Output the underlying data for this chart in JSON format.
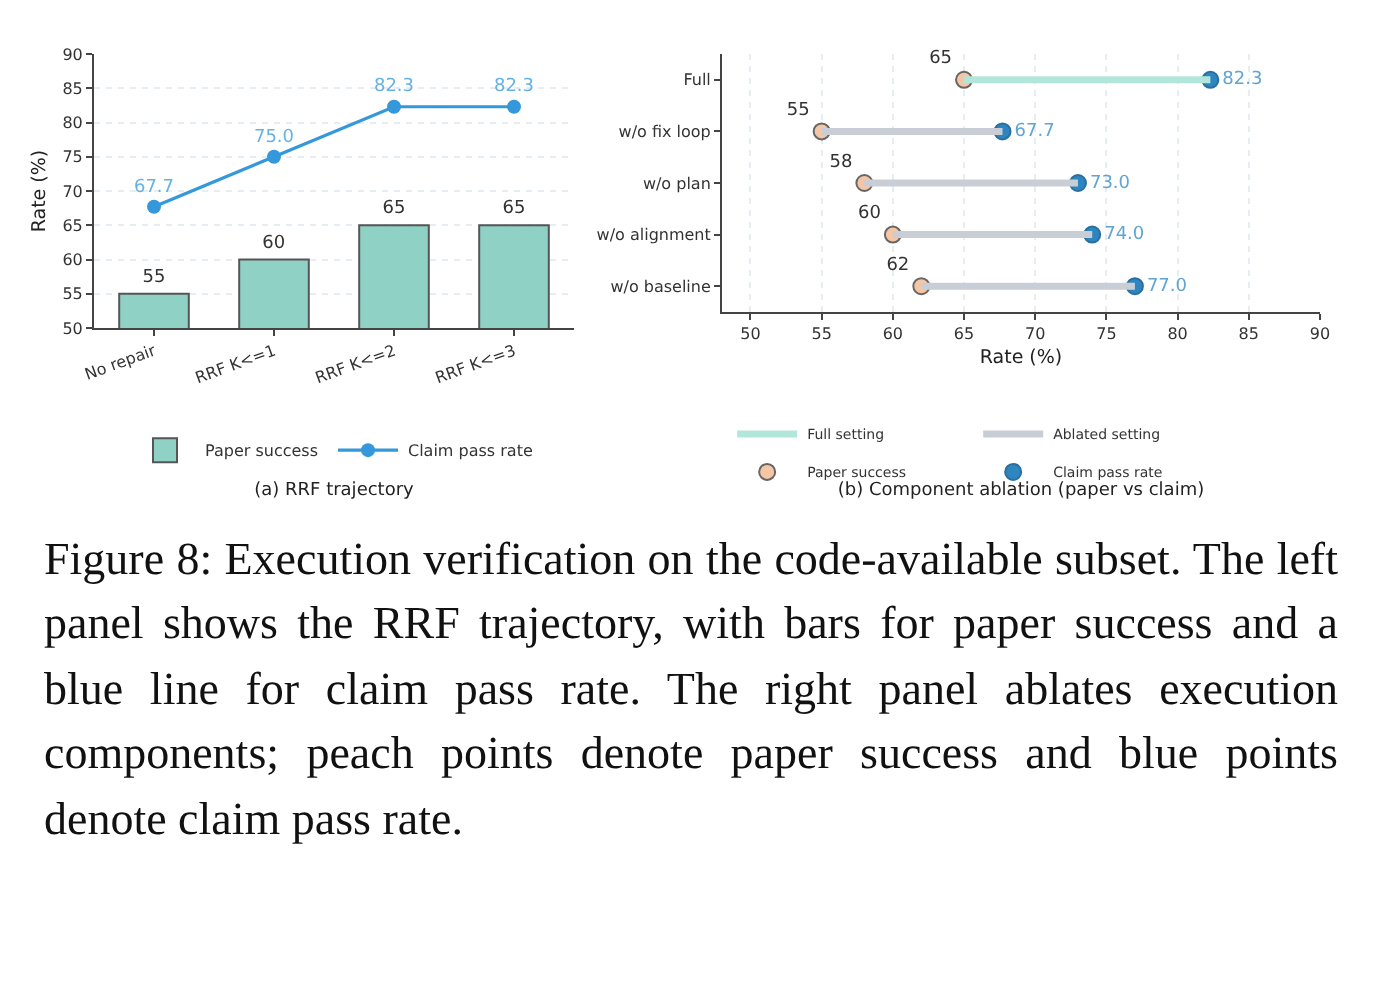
{
  "chart_data": [
    {
      "type": "bar",
      "title": "(a) RRF trajectory",
      "ylabel": "Rate (%)",
      "categories": [
        "No repair",
        "RRF K<=1",
        "RRF K<=2",
        "RRF K<=3"
      ],
      "series": [
        {
          "name": "Paper success",
          "color": "#8fd1c5",
          "values": [
            55,
            60,
            65,
            65
          ],
          "value_labels": [
            "55",
            "60",
            "65",
            "65"
          ]
        },
        {
          "name": "Claim pass rate",
          "type": "line",
          "color": "#3498db",
          "values": [
            67.7,
            75.0,
            82.3,
            82.3
          ],
          "value_labels": [
            "67.7",
            "75.0",
            "82.3",
            "82.3"
          ]
        }
      ],
      "ylim": [
        50,
        90
      ],
      "yticks": [
        50,
        55,
        60,
        65,
        70,
        75,
        80,
        85,
        90
      ],
      "grid": "y",
      "legend": "bottom",
      "marker": "circle",
      "line_style": "solid",
      "annotations": [
        "Figure 8: Execution verification on the code-available subset. The left panel shows the RRF trajectory, with bars for paper success and a blue line for claim pass rate. The right panel ablates execution components; peach points denote paper success and blue points denote claim pass rate."
      ]
    },
    {
      "type": "scatter",
      "orientation": "horizontal",
      "title": "(b) Component ablation (paper vs claim)",
      "xlabel": "Rate (%)",
      "categories": [
        "Full",
        "w/o fix loop",
        "w/o plan",
        "w/o alignment",
        "w/o baseline"
      ],
      "series": [
        {
          "name": "Full setting",
          "type": "bar",
          "color": "#b3e6da",
          "base": [
            65,
            null,
            null,
            null,
            null
          ],
          "values": [
            17.3,
            null,
            null,
            null,
            null
          ],
          "value_labels": [
            null,
            null,
            null,
            null,
            null
          ]
        },
        {
          "name": "Ablated setting",
          "type": "bar",
          "color": "#c9ced6",
          "base": [
            null,
            55,
            58,
            60,
            62
          ],
          "values": [
            null,
            12.7,
            15.0,
            14.0,
            15.0
          ],
          "value_labels": [
            null,
            null,
            null,
            null,
            null
          ]
        },
        {
          "name": "Paper success",
          "color": "#f5c6a5",
          "values": [
            65,
            55,
            58,
            60,
            62
          ],
          "value_labels": [
            "65",
            "55",
            "58",
            "60",
            "62"
          ]
        },
        {
          "name": "Claim pass rate",
          "color": "#2e86c1",
          "values": [
            82.3,
            67.7,
            73.0,
            74.0,
            77.0
          ],
          "value_labels": [
            "82.3",
            "67.7",
            "73.0",
            "74.0",
            "77.0"
          ]
        }
      ],
      "xlim": [
        48,
        90
      ],
      "xticks": [
        50,
        55,
        60,
        65,
        70,
        75,
        80,
        85,
        90
      ],
      "grid": "x",
      "legend": "bottom",
      "marker": "circle"
    }
  ]
}
